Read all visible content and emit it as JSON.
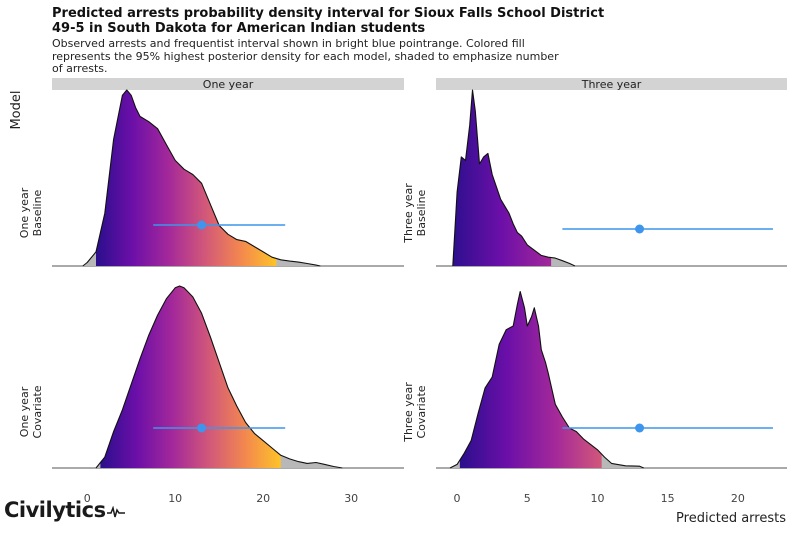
{
  "title": "Predicted arrests probability density interval for Sioux Falls School District 49-5 in South Dakota for American Indian students",
  "subtitle": "Observed arrests and frequentist interval shown in bright blue pointrange. Colored fill represents the 95% highest posterior density for each model, shaded to emphasize number of arrests.",
  "logo_text": "Civilytics",
  "colors": {
    "pointrange": "#3d95ec",
    "gradient": [
      "#2a0f8c",
      "#6b0fa8",
      "#a3289a",
      "#d1577a",
      "#f3874f",
      "#fdc328"
    ],
    "outer_fill": "#b8b8b8",
    "strip": "#d3d3d3"
  },
  "chart_data": {
    "type": "ridgeline",
    "ylabel": "Model",
    "xlabel": "Predicted arrests",
    "panels": [
      {
        "title": "One year",
        "xlim": [
          -4,
          36
        ],
        "ticks": [
          0,
          10,
          20,
          30
        ],
        "rows": [
          {
            "label": "One year Baseline",
            "label_lines": [
              "One year",
              "Baseline"
            ],
            "hdi": [
              1,
              21.5
            ],
            "point": 13,
            "interval": [
              7.5,
              22.5
            ],
            "density": [
              [
                -0.5,
                0
              ],
              [
                0,
                0.02
              ],
              [
                1,
                0.08
              ],
              [
                2,
                0.3
              ],
              [
                3,
                0.72
              ],
              [
                4,
                0.97
              ],
              [
                4.5,
                1.0
              ],
              [
                5,
                0.97
              ],
              [
                5.5,
                0.9
              ],
              [
                6,
                0.85
              ],
              [
                7,
                0.82
              ],
              [
                8,
                0.78
              ],
              [
                9,
                0.69
              ],
              [
                10,
                0.6
              ],
              [
                11,
                0.55
              ],
              [
                12,
                0.52
              ],
              [
                13,
                0.47
              ],
              [
                14,
                0.35
              ],
              [
                15,
                0.23
              ],
              [
                16,
                0.18
              ],
              [
                17,
                0.15
              ],
              [
                18,
                0.14
              ],
              [
                19,
                0.11
              ],
              [
                20,
                0.08
              ],
              [
                21,
                0.05
              ],
              [
                22,
                0.035
              ],
              [
                23,
                0.028
              ],
              [
                24,
                0.022
              ],
              [
                25,
                0.014
              ],
              [
                26,
                0.005
              ],
              [
                26.5,
                0
              ]
            ]
          },
          {
            "label": "One year Covariate",
            "label_lines": [
              "One year",
              "Covariate"
            ],
            "hdi": [
              1.5,
              22
            ],
            "point": 13,
            "interval": [
              7.5,
              22.5
            ],
            "density": [
              [
                1,
                0
              ],
              [
                2,
                0.06
              ],
              [
                3,
                0.2
              ],
              [
                4,
                0.32
              ],
              [
                5,
                0.46
              ],
              [
                6,
                0.6
              ],
              [
                7,
                0.73
              ],
              [
                8,
                0.84
              ],
              [
                9,
                0.93
              ],
              [
                10,
                0.99
              ],
              [
                10.5,
                1.0
              ],
              [
                11,
                0.99
              ],
              [
                12,
                0.94
              ],
              [
                13,
                0.85
              ],
              [
                14,
                0.72
              ],
              [
                15,
                0.58
              ],
              [
                16,
                0.44
              ],
              [
                17,
                0.34
              ],
              [
                18,
                0.25
              ],
              [
                19,
                0.19
              ],
              [
                20,
                0.15
              ],
              [
                21,
                0.11
              ],
              [
                22,
                0.07
              ],
              [
                23,
                0.05
              ],
              [
                24,
                0.035
              ],
              [
                25,
                0.025
              ],
              [
                26,
                0.03
              ],
              [
                27,
                0.02
              ],
              [
                28,
                0.008
              ],
              [
                29,
                0
              ]
            ]
          }
        ]
      },
      {
        "title": "Three year",
        "xlim": [
          -1.5,
          23.5
        ],
        "ticks": [
          0,
          5,
          10,
          15,
          20
        ],
        "rows": [
          {
            "label": "Three year Baseline",
            "label_lines": [
              "Three year",
              "Baseline"
            ],
            "hdi": [
              -0.5,
              6.7
            ],
            "point": 13,
            "interval": [
              7.5,
              22.5
            ],
            "density": [
              [
                -0.3,
                0
              ],
              [
                0,
                0.42
              ],
              [
                0.3,
                0.62
              ],
              [
                0.6,
                0.6
              ],
              [
                0.9,
                0.8
              ],
              [
                1.1,
                1.0
              ],
              [
                1.3,
                0.88
              ],
              [
                1.6,
                0.58
              ],
              [
                1.9,
                0.62
              ],
              [
                2.2,
                0.64
              ],
              [
                2.5,
                0.52
              ],
              [
                2.8,
                0.45
              ],
              [
                3.1,
                0.38
              ],
              [
                3.4,
                0.34
              ],
              [
                3.7,
                0.3
              ],
              [
                4.0,
                0.24
              ],
              [
                4.3,
                0.19
              ],
              [
                4.6,
                0.17
              ],
              [
                5.0,
                0.12
              ],
              [
                5.5,
                0.09
              ],
              [
                6.0,
                0.06
              ],
              [
                6.5,
                0.05
              ],
              [
                7.0,
                0.045
              ],
              [
                7.5,
                0.03
              ],
              [
                8.0,
                0.015
              ],
              [
                8.4,
                0
              ]
            ]
          },
          {
            "label": "Three year Covariate",
            "label_lines": [
              "Three year",
              "Covariate"
            ],
            "hdi": [
              0.2,
              10.3
            ],
            "point": 13,
            "interval": [
              7.5,
              22.5
            ],
            "density": [
              [
                -0.5,
                0
              ],
              [
                0,
                0.02
              ],
              [
                0.5,
                0.08
              ],
              [
                1,
                0.15
              ],
              [
                1.5,
                0.3
              ],
              [
                2,
                0.44
              ],
              [
                2.5,
                0.5
              ],
              [
                3,
                0.68
              ],
              [
                3.5,
                0.76
              ],
              [
                4,
                0.78
              ],
              [
                4.3,
                0.9
              ],
              [
                4.5,
                0.97
              ],
              [
                4.8,
                0.88
              ],
              [
                5,
                0.78
              ],
              [
                5.3,
                0.83
              ],
              [
                5.5,
                0.88
              ],
              [
                5.8,
                0.78
              ],
              [
                6,
                0.65
              ],
              [
                6.3,
                0.58
              ],
              [
                6.5,
                0.52
              ],
              [
                7,
                0.35
              ],
              [
                7.5,
                0.28
              ],
              [
                8,
                0.22
              ],
              [
                8.5,
                0.2
              ],
              [
                9,
                0.16
              ],
              [
                9.5,
                0.13
              ],
              [
                10,
                0.1
              ],
              [
                10.5,
                0.06
              ],
              [
                11,
                0.025
              ],
              [
                12,
                0.012
              ],
              [
                13,
                0.01
              ],
              [
                13.3,
                0
              ]
            ]
          }
        ]
      }
    ]
  }
}
